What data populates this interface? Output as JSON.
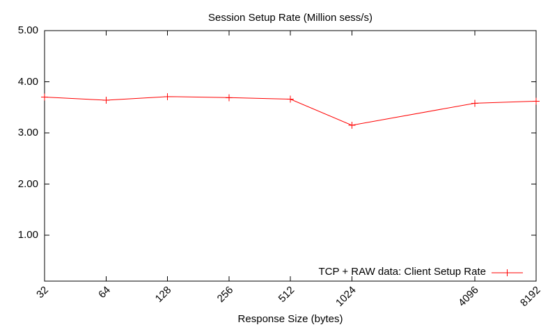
{
  "title": "Session Setup Rate (Million sess/s)",
  "xlabel": "Response Size (bytes)",
  "legend": {
    "label": "TCP + RAW data: Client Setup Rate"
  },
  "colors": {
    "line": "#ff0000",
    "axis": "#000000",
    "text": "#000000",
    "background": "#ffffff"
  },
  "axes": {
    "y_tick_labels": [
      "1.00",
      "2.00",
      "3.00",
      "4.00",
      "5.00"
    ],
    "x_tick_labels": [
      "32",
      "64",
      "128",
      "256",
      "512",
      "1024",
      "4096",
      "8192"
    ]
  },
  "chart_data": {
    "type": "line",
    "title": "Session Setup Rate (Million sess/s)",
    "xlabel": "Response Size (bytes)",
    "ylabel": "",
    "x_scale": "log2",
    "categories": [
      32,
      64,
      128,
      256,
      512,
      1024,
      4096,
      8192
    ],
    "series": [
      {
        "name": "TCP + RAW data: Client Setup Rate",
        "color": "#ff0000",
        "marker": "plus",
        "values": [
          3.7,
          3.64,
          3.71,
          3.69,
          3.66,
          3.15,
          3.58,
          3.62
        ]
      }
    ],
    "xlim": [
      32,
      8192
    ],
    "ylim": [
      0.1,
      5.0
    ],
    "y_ticks": [
      1.0,
      2.0,
      3.0,
      4.0,
      5.0
    ],
    "grid": false,
    "tick_style": "inward-mirrored",
    "legend_position": "bottom-right",
    "legend_box": false
  }
}
